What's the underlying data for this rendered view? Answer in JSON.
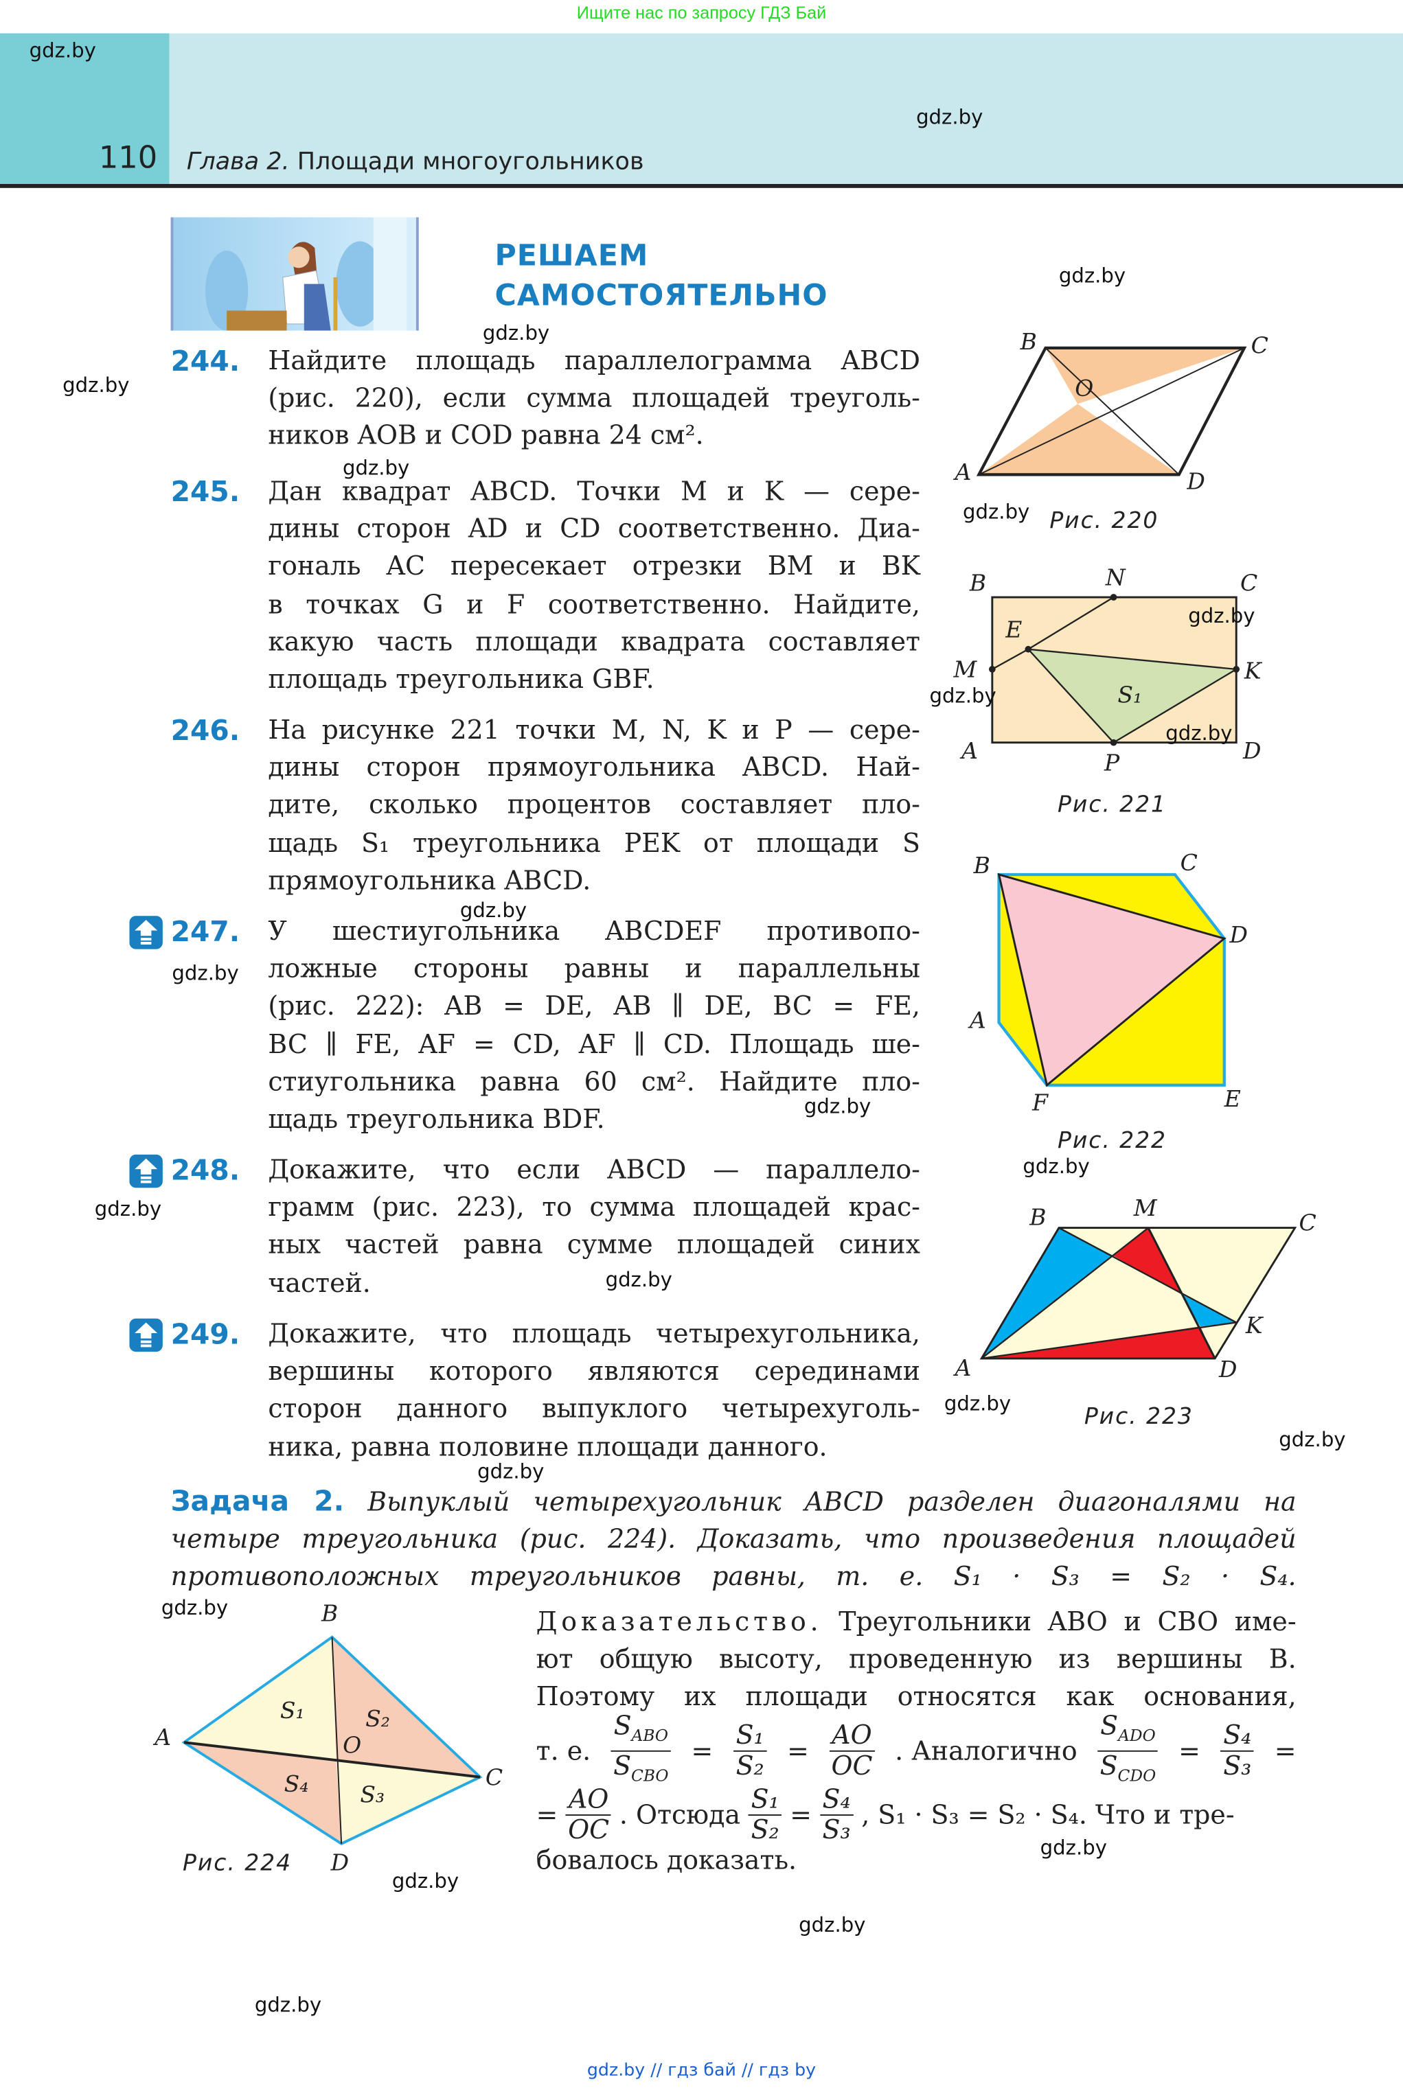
{
  "promo_banner": "Ищите нас по запросу ГДЗ Бай",
  "watermark": "gdz.by",
  "header": {
    "page_number": "110",
    "chapter_label": "Глава 2.",
    "chapter_title": "Площади многоугольников"
  },
  "section": {
    "title_line1": "РЕШАЕМ",
    "title_line2": "САМОСТОЯТЕЛЬНО"
  },
  "colors": {
    "accent_blue": "#1a7fc1",
    "header_teal": "#7acfd6",
    "header_light": "#c8e8ee",
    "promo_green": "#22dd22"
  },
  "problems": [
    {
      "number": "244.",
      "starred": false,
      "lines": [
        "Найдите площадь параллелограмма ABCD",
        "(рис. 220), если сумма площадей треуголь-",
        "ников AOB и COD равна 24 см²."
      ]
    },
    {
      "number": "245.",
      "starred": false,
      "lines": [
        "Дан квадрат ABCD. Точки M и K — сере-",
        "дины сторон AD и CD соответственно. Диа-",
        "гональ AC пересекает отрезки BM и BK",
        "в точках G и F соответственно. Найдите,",
        "какую часть площади квадрата составляет",
        "площадь треугольника GBF."
      ]
    },
    {
      "number": "246.",
      "starred": false,
      "lines": [
        "На рисунке 221 точки M, N, K и P — сере-",
        "дины сторон прямоугольника ABCD. Най-",
        "дите, сколько процентов составляет пло-",
        "щадь S₁ треугольника PEK от площади S",
        "прямоугольника ABCD."
      ]
    },
    {
      "number": "247.",
      "starred": true,
      "lines": [
        "У шестиугольника ABCDEF противопо-",
        "ложные стороны равны и параллельны",
        "(рис. 222): AB = DE, AB ∥ DE, BC = FE,",
        "BC ∥ FE, AF = CD, AF ∥ CD. Площадь ше-",
        "стиугольника равна 60 см². Найдите пло-",
        "щадь треугольника BDF."
      ]
    },
    {
      "number": "248.",
      "starred": true,
      "lines": [
        "Докажите, что если ABCD — параллело-",
        "грамм (рис. 223), то сумма площадей крас-",
        "ных частей равна сумме площадей синих",
        "частей."
      ]
    },
    {
      "number": "249.",
      "starred": true,
      "lines": [
        "Докажите, что площадь четырехугольника,",
        "вершины которого являются серединами",
        "сторон данного выпуклого четырехуголь-",
        "ника, равна половине площади данного."
      ]
    }
  ],
  "task": {
    "label": "Задача 2.",
    "lines": [
      "Выпуклый четырехугольник ABCD разделен диагоналями на",
      "четыре треугольника (рис. 224). Доказать, что произведения площадей",
      "противоположных треугольников равны, т. е. S₁ · S₃ = S₂ · S₄."
    ]
  },
  "proof": {
    "lead": "Доказательство.",
    "line1": "Треугольники ABO и CBO име-",
    "line2": "ют общую высоту, проведенную из вершины B.",
    "line3": "Поэтому их площади относятся как основания,",
    "line4": {
      "prefix": "т. е.",
      "f1n": "S",
      "f1ns": "ABO",
      "f1d": "S",
      "f1ds": "CBO",
      "eq": "=",
      "f2n": "S₁",
      "f2d": "S₂",
      "f3n": "AO",
      "f3d": "OC",
      "mid": ". Аналогично",
      "f4n": "S",
      "f4ns": "ADO",
      "f4d": "S",
      "f4ds": "CDO",
      "f5n": "S₄",
      "f5d": "S₃"
    },
    "line5": {
      "prefix": "=",
      "f1n": "AO",
      "f1d": "OC",
      "mid": ". Отсюда",
      "f2n": "S₁",
      "f2d": "S₂",
      "f3n": "S₄",
      "f3d": "S₃",
      "tail": ", S₁ · S₃ = S₂ · S₄. Что и тре-"
    },
    "line6": "бовалось доказать."
  },
  "figures": {
    "fig220": {
      "caption": "Рис. 220",
      "labels": {
        "A": "A",
        "B": "B",
        "C": "C",
        "D": "D",
        "O": "O"
      },
      "fill": "#f9c89b"
    },
    "fig221": {
      "caption": "Рис. 221",
      "labels": {
        "A": "A",
        "B": "B",
        "C": "C",
        "D": "D",
        "M": "M",
        "N": "N",
        "K": "K",
        "P": "P",
        "E": "E",
        "S1": "S₁"
      },
      "fill": "#fbe7c0",
      "triangle_fill": "#d2e3b3"
    },
    "fig222": {
      "caption": "Рис. 222",
      "labels": {
        "A": "A",
        "B": "B",
        "C": "C",
        "D": "D",
        "E": "E",
        "F": "F"
      },
      "fill": "#fff200",
      "triangle_fill": "#f9c8d0",
      "outline": "#27a9e1"
    },
    "fig223": {
      "caption": "Рис. 223",
      "labels": {
        "A": "A",
        "B": "B",
        "C": "C",
        "D": "D",
        "M": "M",
        "K": "K"
      },
      "fill": "#fefbd8",
      "red": "#ed1c24",
      "blue": "#00aeef"
    },
    "fig224": {
      "caption": "Рис. 224",
      "labels": {
        "A": "A",
        "B": "B",
        "C": "C",
        "D": "D",
        "O": "O",
        "S1": "S₁",
        "S2": "S₂",
        "S3": "S₃",
        "S4": "S₄"
      },
      "yellow": "#fdf8d5",
      "pink": "#f8cdb8",
      "outline": "#27a9e1"
    }
  },
  "footer": "gdz.by // гдз бай // гдз by"
}
